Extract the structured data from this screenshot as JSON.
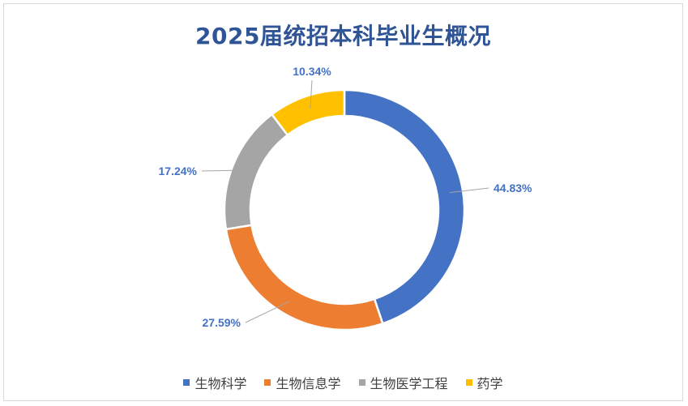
{
  "chart_data": {
    "type": "pie",
    "variant": "donut",
    "title": "2025届统招本科毕业生概况",
    "categories": [
      "生物科学",
      "生物信息学",
      "生物医学工程",
      "药学"
    ],
    "values": [
      44.83,
      27.59,
      17.24,
      10.34
    ],
    "data_labels": [
      "44.83%",
      "27.59%",
      "17.24%",
      "10.34%"
    ],
    "colors": [
      "#4472c4",
      "#ed7d31",
      "#a5a5a5",
      "#ffc000"
    ],
    "label_color": "#4472c4",
    "legend_position": "bottom"
  }
}
